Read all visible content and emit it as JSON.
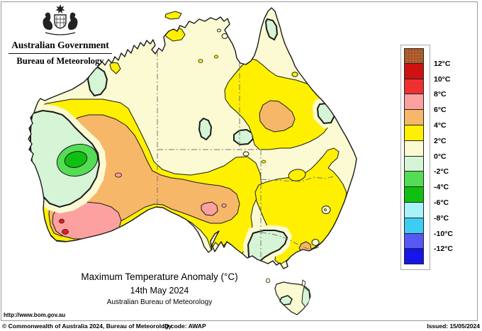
{
  "header": {
    "government": "Australian Government",
    "agency": "Bureau of Meteorology"
  },
  "map_titles": {
    "title": "Maximum Temperature Anomaly (°C)",
    "date": "14th May 2024",
    "source": "Australian Bureau of Meteorology"
  },
  "legend": {
    "labels": [
      "12°C",
      "10°C",
      "8°C",
      "6°C",
      "4°C",
      "2°C",
      "0°C",
      "-2°C",
      "-4°C",
      "-6°C",
      "-8°C",
      "-10°C",
      "-12°C"
    ],
    "swatch_colors": [
      "#A4682F",
      "#CE1212",
      "#EE3030",
      "#FCA0A0",
      "#F7B768",
      "#FFF000",
      "#FBFAD2",
      "#D6F4D6",
      "#54DC54",
      "#10C010",
      "#A8F2FC",
      "#3CCCF4",
      "#5858F4",
      "#1616E8"
    ]
  },
  "footer": {
    "url": "http://www.bom.gov.au",
    "copyright": "© Commonwealth of Australia 2024, Bureau of Meteorology",
    "id_code": "ID code: AWAP",
    "issued": "Issued: 15/05/2024"
  },
  "colors": {
    "cream": "#FBFAD2",
    "pale_green": "#D6F4D6",
    "light_green": "#54DC54",
    "dark_green": "#10C010",
    "yellow": "#FFF000",
    "orange": "#F7B768",
    "pink": "#FCA0A0",
    "red": "#E51E1E",
    "outline": "#1a1a1a",
    "border_dash": "#777777",
    "frame": "#999999"
  }
}
